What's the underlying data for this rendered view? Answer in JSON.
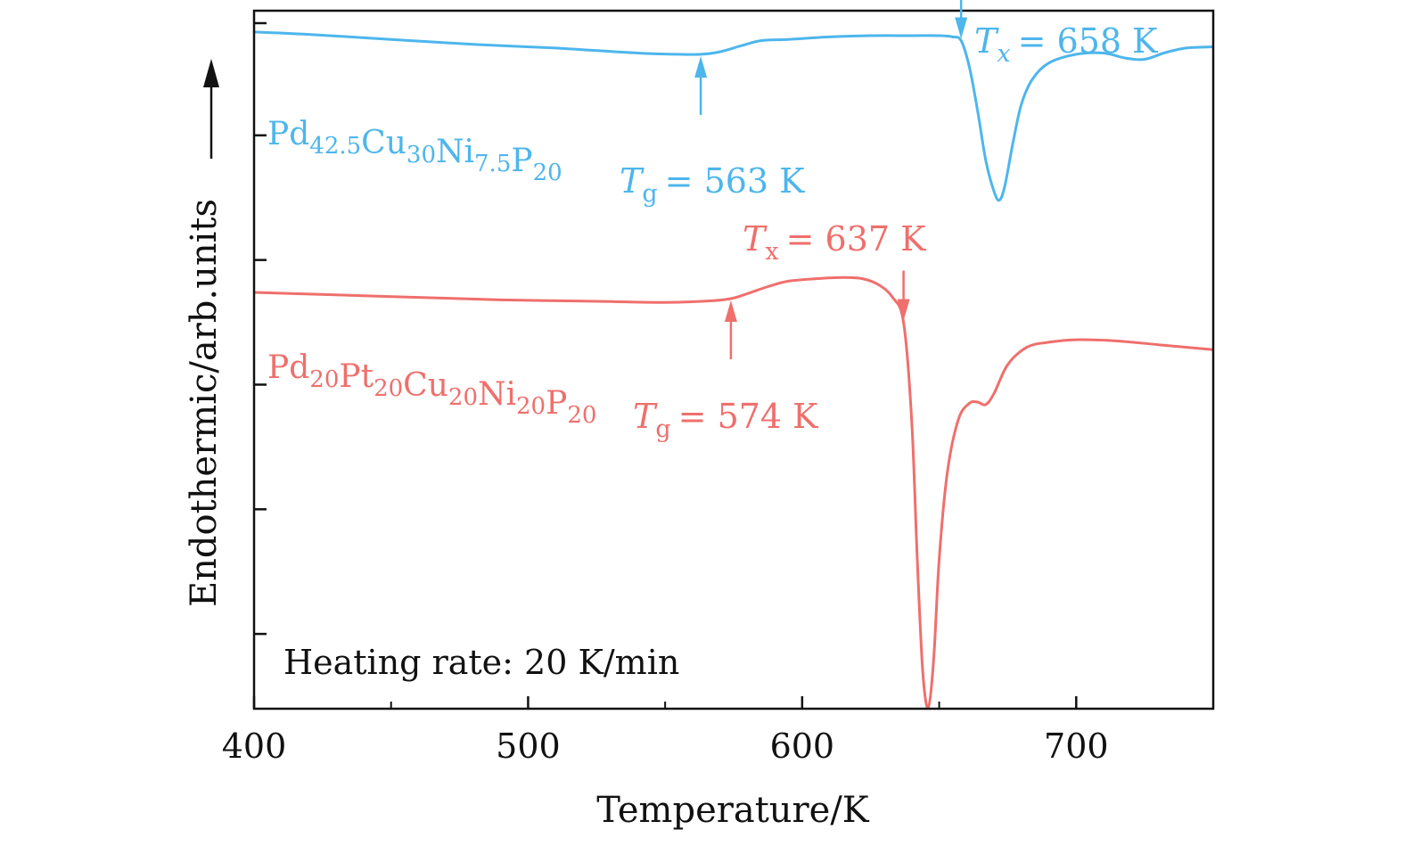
{
  "chart_data": {
    "type": "line",
    "xlabel": "Temperature/K",
    "ylabel": "Endothermic/arb.units",
    "xlim": [
      400,
      750
    ],
    "ylim": [
      0,
      5.6
    ],
    "x_ticks": [
      400,
      500,
      600,
      700
    ],
    "x_minor_ticks": [
      450,
      550,
      650
    ],
    "y_ticks": [
      0.6,
      1.6,
      2.6,
      3.6,
      4.6,
      5.5
    ],
    "grid": false,
    "note": "Heating rate: 20 K/min",
    "series": [
      {
        "name": "Pd42.5Cu30Ni7.5P20",
        "label_parts": [
          {
            "text": "Pd",
            "sub": "42.5"
          },
          {
            "text": "Cu",
            "sub": "30"
          },
          {
            "text": "Ni",
            "sub": "7.5"
          },
          {
            "text": "P",
            "sub": "20"
          }
        ],
        "color": "#4db6ec",
        "x": [
          400,
          420,
          450,
          480,
          510,
          540,
          555,
          563,
          570,
          578,
          585,
          595,
          610,
          625,
          640,
          650,
          655,
          658,
          661,
          664,
          667,
          670,
          672,
          674,
          677,
          680,
          684,
          690,
          700,
          710,
          718,
          725,
          732,
          740,
          750
        ],
        "y": [
          5.43,
          5.41,
          5.37,
          5.33,
          5.3,
          5.26,
          5.25,
          5.25,
          5.27,
          5.32,
          5.36,
          5.37,
          5.39,
          5.4,
          5.4,
          5.4,
          5.39,
          5.36,
          5.15,
          4.8,
          4.4,
          4.15,
          4.08,
          4.2,
          4.55,
          4.85,
          5.05,
          5.18,
          5.25,
          5.26,
          5.22,
          5.21,
          5.26,
          5.3,
          5.31
        ],
        "annotations": [
          {
            "symbol": "T",
            "sub": "g",
            "value_text": "= 563 K",
            "x": 563,
            "direction": "up"
          },
          {
            "symbol": "T",
            "sub": "x",
            "value_text": "= 658 K",
            "x": 658,
            "direction": "down"
          }
        ]
      },
      {
        "name": "Pd20Pt20Cu20Ni20P20",
        "label_parts": [
          {
            "text": "Pd",
            "sub": "20"
          },
          {
            "text": "Pt",
            "sub": "20"
          },
          {
            "text": "Cu",
            "sub": "20"
          },
          {
            "text": "Ni",
            "sub": "20"
          },
          {
            "text": "P",
            "sub": "20"
          }
        ],
        "color": "#ef6f6c",
        "x": [
          400,
          430,
          460,
          490,
          520,
          550,
          565,
          574,
          580,
          588,
          595,
          605,
          615,
          622,
          628,
          633,
          637,
          640,
          642,
          644,
          646,
          648,
          650,
          653,
          657,
          661,
          664,
          667,
          670,
          675,
          682,
          690,
          700,
          715,
          730,
          750
        ],
        "y": [
          3.34,
          3.32,
          3.3,
          3.28,
          3.27,
          3.26,
          3.27,
          3.29,
          3.33,
          3.39,
          3.43,
          3.45,
          3.46,
          3.45,
          3.4,
          3.3,
          3.1,
          2.3,
          1.2,
          0.3,
          0.01,
          0.4,
          1.2,
          1.9,
          2.32,
          2.45,
          2.46,
          2.44,
          2.53,
          2.76,
          2.9,
          2.94,
          2.96,
          2.95,
          2.92,
          2.88
        ],
        "annotations": [
          {
            "symbol": "T",
            "sub": "g",
            "value_text": "= 574 K",
            "x": 574,
            "direction": "up"
          },
          {
            "symbol": "T",
            "sub": "x",
            "value_text": "= 637 K",
            "x": 637,
            "direction": "down"
          }
        ]
      }
    ]
  }
}
